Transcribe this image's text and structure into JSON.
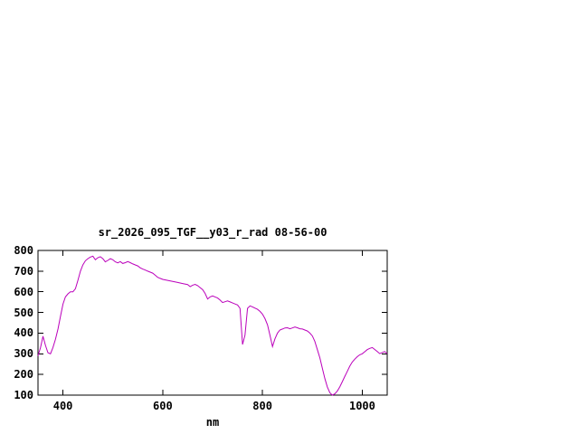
{
  "window": {
    "background_color": "#ffffff"
  },
  "chart_data": {
    "type": "line",
    "title": "sr_2026_095_TGF__y03_r_rad 08-56-00",
    "xlabel": "nm",
    "ylabel": "",
    "xlim": [
      350,
      1050
    ],
    "ylim": [
      100,
      800
    ],
    "xticks": [
      400,
      600,
      800,
      1000
    ],
    "yticks": [
      100,
      200,
      300,
      400,
      500,
      600,
      700,
      800
    ],
    "grid": false,
    "legend": "none",
    "line_color": "#bb00bb",
    "axis_color": "#000000",
    "x": [
      350,
      355,
      360,
      365,
      370,
      375,
      380,
      385,
      390,
      395,
      400,
      405,
      410,
      415,
      420,
      425,
      430,
      435,
      440,
      445,
      450,
      455,
      460,
      465,
      470,
      475,
      480,
      485,
      490,
      495,
      500,
      505,
      510,
      515,
      520,
      525,
      530,
      535,
      540,
      545,
      550,
      555,
      560,
      565,
      570,
      575,
      580,
      585,
      590,
      595,
      600,
      610,
      620,
      630,
      640,
      650,
      655,
      660,
      665,
      670,
      675,
      680,
      685,
      690,
      695,
      700,
      705,
      710,
      715,
      720,
      725,
      730,
      735,
      740,
      745,
      750,
      755,
      760,
      765,
      770,
      775,
      780,
      785,
      790,
      795,
      800,
      805,
      810,
      815,
      820,
      825,
      830,
      835,
      840,
      845,
      850,
      855,
      860,
      865,
      870,
      875,
      880,
      885,
      890,
      895,
      900,
      905,
      910,
      915,
      920,
      925,
      930,
      935,
      940,
      945,
      950,
      955,
      960,
      965,
      970,
      975,
      980,
      985,
      990,
      995,
      1000,
      1005,
      1010,
      1015,
      1020,
      1025,
      1030,
      1035,
      1040,
      1045,
      1050
    ],
    "y": [
      290,
      330,
      385,
      340,
      305,
      300,
      330,
      370,
      420,
      480,
      540,
      575,
      590,
      600,
      600,
      615,
      655,
      700,
      730,
      750,
      760,
      768,
      772,
      755,
      765,
      770,
      760,
      745,
      752,
      760,
      755,
      745,
      740,
      746,
      737,
      741,
      746,
      741,
      735,
      730,
      725,
      716,
      710,
      705,
      700,
      695,
      690,
      680,
      670,
      665,
      660,
      655,
      650,
      645,
      640,
      635,
      625,
      632,
      636,
      630,
      620,
      610,
      592,
      565,
      575,
      580,
      575,
      570,
      560,
      548,
      552,
      556,
      551,
      546,
      541,
      536,
      520,
      345,
      390,
      520,
      532,
      527,
      521,
      515,
      505,
      492,
      470,
      440,
      390,
      335,
      372,
      400,
      415,
      420,
      425,
      426,
      421,
      425,
      430,
      426,
      421,
      420,
      415,
      410,
      400,
      386,
      360,
      320,
      280,
      230,
      180,
      140,
      112,
      100,
      106,
      120,
      140,
      165,
      190,
      215,
      240,
      260,
      274,
      286,
      295,
      300,
      310,
      320,
      326,
      330,
      321,
      311,
      301,
      306,
      311,
      300
    ]
  }
}
